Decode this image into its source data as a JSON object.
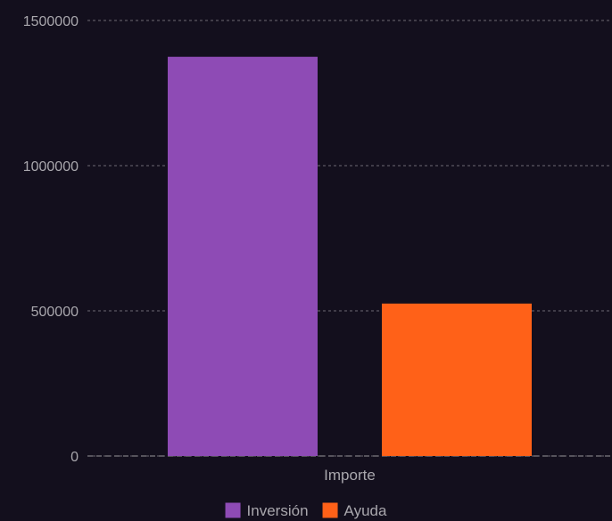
{
  "chart_data": {
    "type": "bar",
    "categories": [
      "Importe"
    ],
    "series": [
      {
        "name": "Inversión",
        "values": [
          1375000
        ],
        "color": "#8e4bb5"
      },
      {
        "name": "Ayuda",
        "values": [
          525000
        ],
        "color": "#ff6118"
      }
    ],
    "title": "",
    "xlabel": "",
    "ylabel": "",
    "ylim": [
      0,
      1500000
    ],
    "yticks": [
      0,
      500000,
      1000000,
      1500000
    ],
    "ytick_labels": [
      "0",
      "500000",
      "1000000",
      "1500000"
    ],
    "grid": true,
    "legend_position": "bottom-center",
    "colors": {
      "background": "#130f1d",
      "grid": "#6c6a72",
      "text": "#a9a7ad"
    }
  }
}
